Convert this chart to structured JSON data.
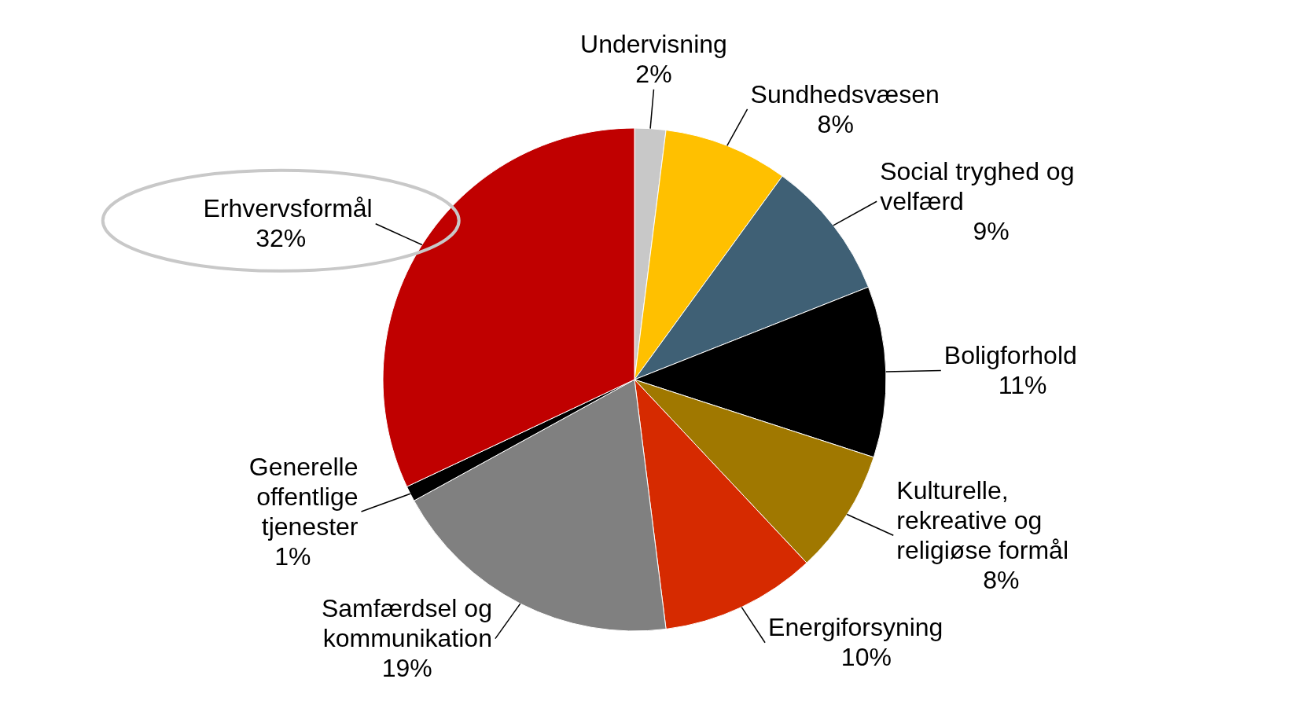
{
  "chart_data": {
    "type": "pie",
    "categories": [
      "Undervisning",
      "Sundhedsvæsen",
      "Social tryghed og velfærd",
      "Boligforhold",
      "Kulturelle, rekreative og religiøse formål",
      "Energiforsyning",
      "Samfærdsel og kommunikation",
      "Generelle offentlige tjenester",
      "Erhvervsformål"
    ],
    "values": [
      2,
      8,
      9,
      11,
      8,
      10,
      19,
      1,
      32
    ],
    "colors": [
      "#c8c8c8",
      "#ffc000",
      "#3f6075",
      "#000000",
      "#a07800",
      "#d62a00",
      "#808080",
      "#000000",
      "#c00000"
    ],
    "value_labels": [
      "2%",
      "8%",
      "9%",
      "11%",
      "8%",
      "10%",
      "19%",
      "1%",
      "32%"
    ]
  }
}
